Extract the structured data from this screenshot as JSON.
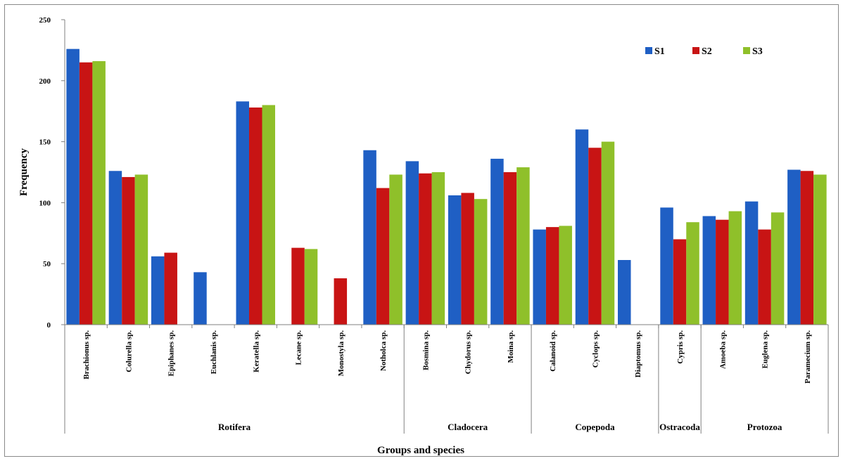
{
  "chart_data": {
    "type": "bar",
    "title": "",
    "xlabel": "Groups and species",
    "ylabel": "Frequency",
    "ylim": [
      0,
      250
    ],
    "yticks": [
      0,
      50,
      100,
      150,
      200,
      250
    ],
    "grid": false,
    "legend_position": "top-right",
    "categories": [
      "Brachionus sp.",
      "Colurella sp.",
      "Epiphanes sp.",
      "Euchlanis sp.",
      "Keratella sp.",
      "Lecane sp.",
      "Monostyla sp.",
      "Notholca sp.",
      "Bosmina sp.",
      "Chydorus sp.",
      "Moina sp.",
      "Calanoid sp.",
      "Cyclops sp.",
      "Diaptomus sp.",
      "Cypris sp.",
      "Amoeba sp.",
      "Euglena sp.",
      "Paramecium sp."
    ],
    "groups": [
      {
        "name": "Rotifera",
        "count": 8
      },
      {
        "name": "Cladocera",
        "count": 3
      },
      {
        "name": "Copepoda",
        "count": 3
      },
      {
        "name": "Ostracoda",
        "count": 1
      },
      {
        "name": "Protozoa",
        "count": 3
      }
    ],
    "series": [
      {
        "name": "S1",
        "color": "#1f5fc4",
        "values": [
          226,
          126,
          56,
          43,
          183,
          0,
          0,
          143,
          134,
          106,
          136,
          78,
          160,
          53,
          96,
          89,
          101,
          127
        ]
      },
      {
        "name": "S2",
        "color": "#c81414",
        "values": [
          215,
          121,
          59,
          0,
          178,
          63,
          38,
          112,
          124,
          108,
          125,
          80,
          145,
          0,
          70,
          86,
          78,
          126
        ]
      },
      {
        "name": "S3",
        "color": "#8fc02a",
        "values": [
          216,
          123,
          0,
          0,
          180,
          62,
          0,
          123,
          125,
          103,
          129,
          81,
          150,
          0,
          84,
          93,
          92,
          123
        ]
      }
    ]
  }
}
